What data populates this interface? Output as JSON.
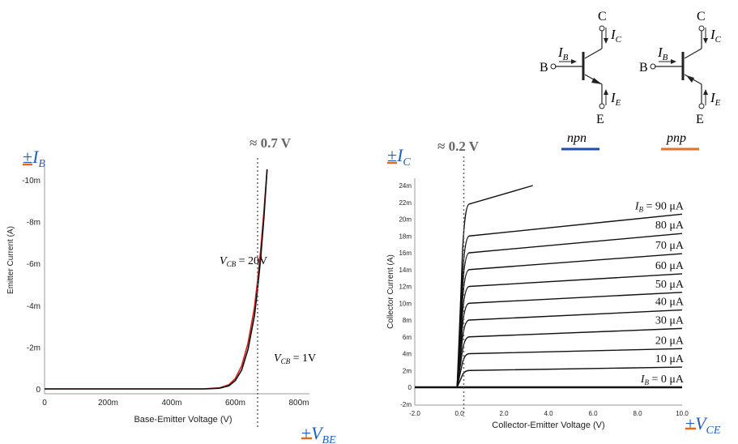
{
  "colors": {
    "npn_underline": "#1f4ea8",
    "pnp_underline": "#e0702a",
    "accent_blue": "#1f5fbf",
    "accent_orange": "#e06a1a",
    "curve_red": "#d42020"
  },
  "symbols": {
    "npn": {
      "C": "C",
      "B": "B",
      "E": "E",
      "IB": "I",
      "IB_sub": "B",
      "IC": "I",
      "IC_sub": "C",
      "IE": "I",
      "IE_sub": "E",
      "caption": "npn"
    },
    "pnp": {
      "C": "C",
      "B": "B",
      "E": "E",
      "IB": "I",
      "IB_sub": "B",
      "IC": "I",
      "IC_sub": "C",
      "IE": "I",
      "IE_sub": "E",
      "caption": "pnp"
    }
  },
  "left_panel": {
    "corner_label": {
      "sign": "±",
      "var": "I",
      "sub": "B"
    },
    "threshold_label": "≈ 0.7 V",
    "bottom_label": {
      "sign": "±",
      "var": "V",
      "sub": "BE"
    },
    "vcb20": {
      "var": "V",
      "sub": "CB",
      "rest": " = 20V"
    },
    "vcb1": {
      "var": "V",
      "sub": "CB",
      "rest": " = 1V"
    }
  },
  "right_panel": {
    "corner_label": {
      "sign": "±",
      "var": "I",
      "sub": "C"
    },
    "threshold_label": "≈ 0.2 V",
    "bottom_label": {
      "sign": "±",
      "var": "V",
      "sub": "CE"
    },
    "curve_labels": [
      {
        "pre": "I",
        "sub": "B",
        "rest": " = 90 μA"
      },
      {
        "pre": "",
        "sub": "",
        "rest": "80 μA"
      },
      {
        "pre": "",
        "sub": "",
        "rest": "70 μA"
      },
      {
        "pre": "",
        "sub": "",
        "rest": "60 μA"
      },
      {
        "pre": "",
        "sub": "",
        "rest": "50 μA"
      },
      {
        "pre": "",
        "sub": "",
        "rest": "40 μA"
      },
      {
        "pre": "",
        "sub": "",
        "rest": "30 μA"
      },
      {
        "pre": "",
        "sub": "",
        "rest": "20 μA"
      },
      {
        "pre": "",
        "sub": "",
        "rest": "10 μA"
      },
      {
        "pre": "I",
        "sub": "B",
        "rest": " = 0 μA"
      }
    ]
  },
  "chart_data": [
    {
      "type": "line",
      "xlabel": "Base-Emitter Voltage (V)",
      "ylabel": "Emitter Current (A)",
      "x_ticks": [
        "0",
        "200m",
        "400m",
        "600m",
        "800m"
      ],
      "y_ticks": [
        "0",
        "-2m",
        "-4m",
        "-6m",
        "-8m",
        "-10m"
      ],
      "xlim": [
        0,
        0.8
      ],
      "ylim": [
        0,
        -10.5
      ],
      "threshold_x": 0.67,
      "series": [
        {
          "name": "VCB = 20V",
          "color": "#d42020",
          "x": [
            0,
            0.5,
            0.55,
            0.58,
            0.6,
            0.62,
            0.64,
            0.66,
            0.67,
            0.68,
            0.69,
            0.7
          ],
          "y": [
            0,
            0,
            -0.05,
            -0.2,
            -0.5,
            -1.1,
            -2.2,
            -3.9,
            -5.2,
            -6.7,
            -8.5,
            -10.5
          ]
        },
        {
          "name": "VCB = 1V",
          "color": "#111111",
          "x": [
            0,
            0.5,
            0.55,
            0.58,
            0.6,
            0.62,
            0.64,
            0.66,
            0.67,
            0.68,
            0.69,
            0.7
          ],
          "y": [
            0,
            0,
            -0.03,
            -0.15,
            -0.4,
            -0.9,
            -1.9,
            -3.5,
            -4.8,
            -6.3,
            -8.2,
            -10.5
          ]
        }
      ]
    },
    {
      "type": "line",
      "xlabel": "Collector-Emitter Voltage (V)",
      "ylabel": "Collector Current (A)",
      "x_ticks": [
        "-2.0",
        "0.0",
        "2.0",
        "4.0",
        "6.0",
        "8.0",
        "10.0"
      ],
      "x_tick_values": [
        -2,
        0,
        2,
        4,
        6,
        8,
        10
      ],
      "y_ticks": [
        "-2m",
        "0",
        "2m",
        "4m",
        "6m",
        "8m",
        "10m",
        "12m",
        "14m",
        "16m",
        "18m",
        "20m",
        "22m",
        "24m"
      ],
      "y_tick_values": [
        -2,
        0,
        2,
        4,
        6,
        8,
        10,
        12,
        14,
        16,
        18,
        20,
        22,
        24
      ],
      "xlim": [
        -2,
        10
      ],
      "ylim": [
        -2.5,
        25
      ],
      "threshold_x": 0.2,
      "series": [
        {
          "name": "IB = 0 μA",
          "i_sat": 0.0,
          "i_end": 0.0
        },
        {
          "name": "10 μA",
          "i_sat": 2.0,
          "i_end": 2.4
        },
        {
          "name": "20 μA",
          "i_sat": 4.0,
          "i_end": 4.6
        },
        {
          "name": "30 μA",
          "i_sat": 6.0,
          "i_end": 7.0
        },
        {
          "name": "40 μA",
          "i_sat": 8.0,
          "i_end": 9.2
        },
        {
          "name": "50 μA",
          "i_sat": 10.0,
          "i_end": 11.3
        },
        {
          "name": "60 μA",
          "i_sat": 12.0,
          "i_end": 13.5
        },
        {
          "name": "70 μA",
          "i_sat": 14.0,
          "i_end": 15.9
        },
        {
          "name": "80 μA",
          "i_sat": 16.0,
          "i_end": 18.3
        },
        {
          "name": "90 μA",
          "i_sat": 18.0,
          "i_end": 20.6
        }
      ],
      "extra_curve": {
        "i_sat": 21.8,
        "i_end": 24.0,
        "x_end": 3.3
      }
    }
  ]
}
